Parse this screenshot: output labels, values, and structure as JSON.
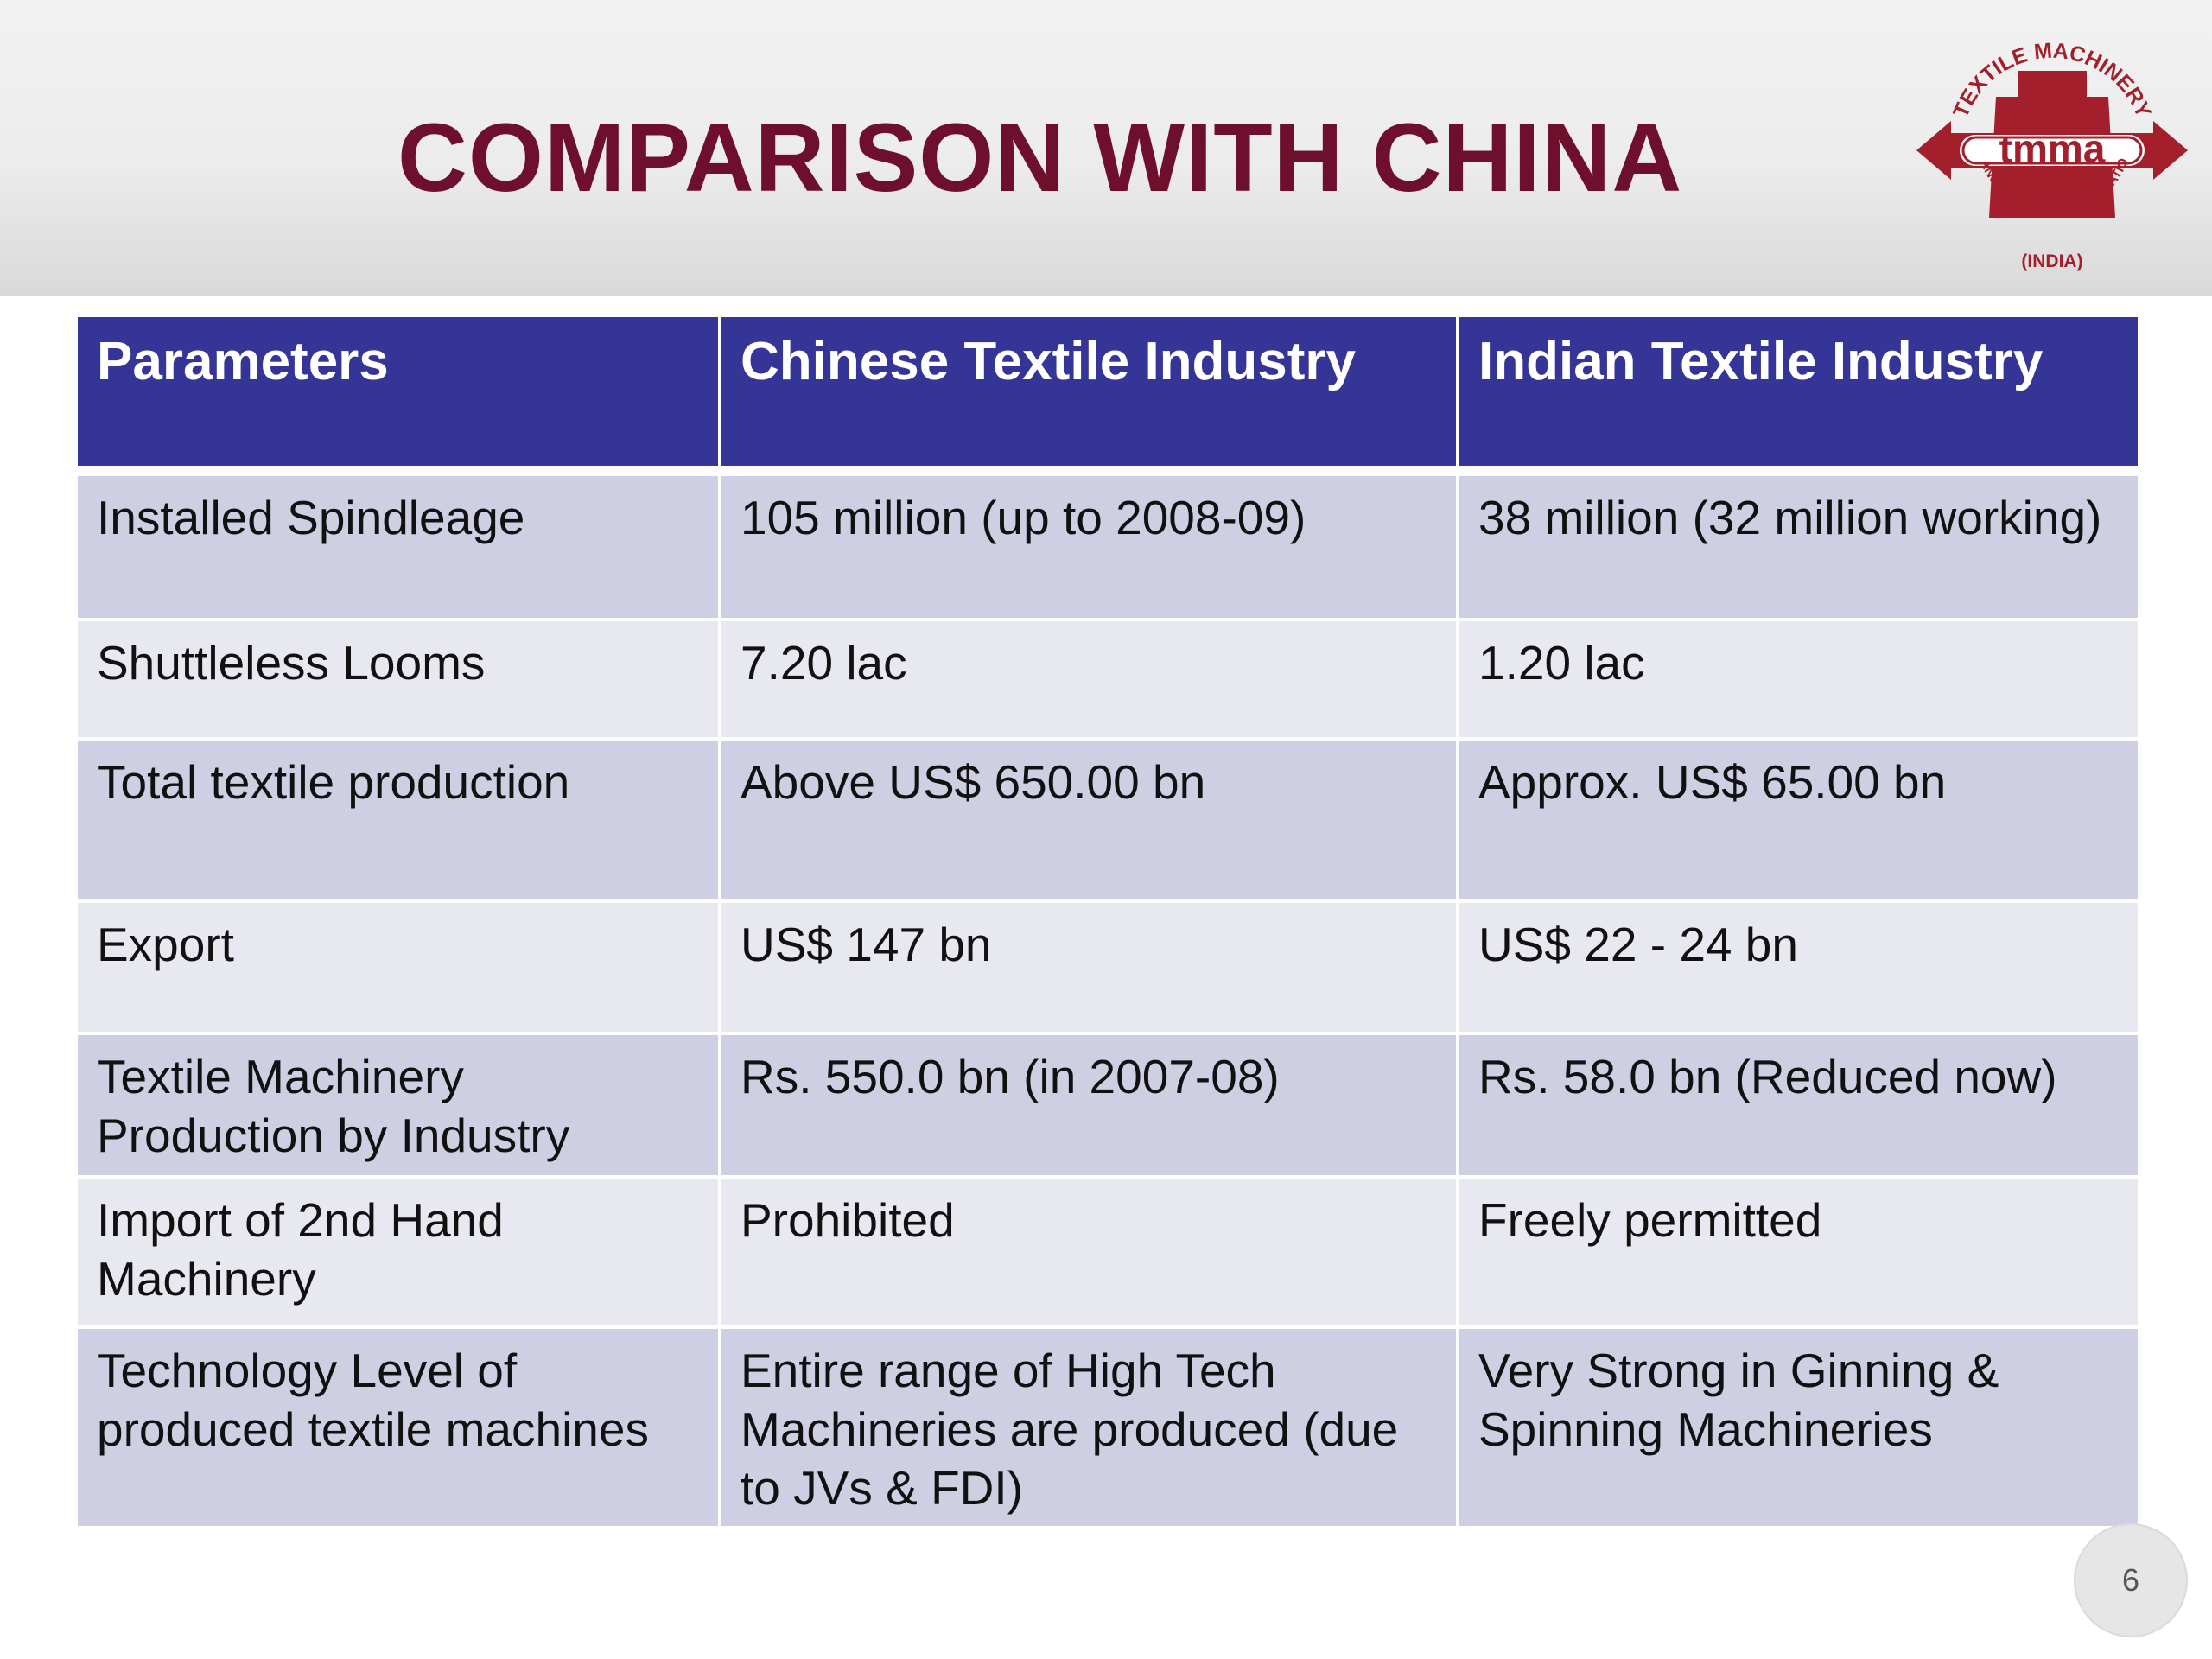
{
  "slide": {
    "title": "COMPARISON WITH CHINA",
    "page_number": "6"
  },
  "logo": {
    "icon": "tmma-logo-icon",
    "text_top": "TEXTILE MACHINERY",
    "text_center": "tmma",
    "text_bottom": "MANUFACTURERS' ASSOCIATION",
    "text_country": "(INDIA)",
    "colors": {
      "primary": "#a31f2c",
      "accent": "#ffffff"
    }
  },
  "table": {
    "headers": [
      "Parameters",
      "Chinese Textile Industry",
      "Indian Textile Industry"
    ],
    "rows": [
      [
        "Installed Spindleage",
        "105 million (up to 2008-09)",
        "38 million (32 million working)"
      ],
      [
        "Shuttleless Looms",
        "7.20 lac",
        "1.20 lac"
      ],
      [
        "Total textile production",
        "Above US$ 650.00 bn",
        "Approx. US$ 65.00 bn"
      ],
      [
        "Export",
        "US$ 147 bn",
        "US$ 22 - 24 bn"
      ],
      [
        "Textile Machinery Production by Industry",
        "Rs. 550.0 bn (in 2007-08)",
        "Rs. 58.0 bn (Reduced now)"
      ],
      [
        "Import of 2nd Hand Machinery",
        "Prohibited",
        "Freely permitted"
      ],
      [
        "Technology Level of produced textile machines",
        "Entire range of High Tech Machineries are produced (due to JVs & FDI)",
        "Very Strong in Ginning & Spinning Machineries"
      ]
    ]
  },
  "colors": {
    "title": "#6e0f2e",
    "header_bg": "#353597",
    "row_odd_bg": "#cfcfe3",
    "row_even_bg": "#e8e8f0"
  }
}
